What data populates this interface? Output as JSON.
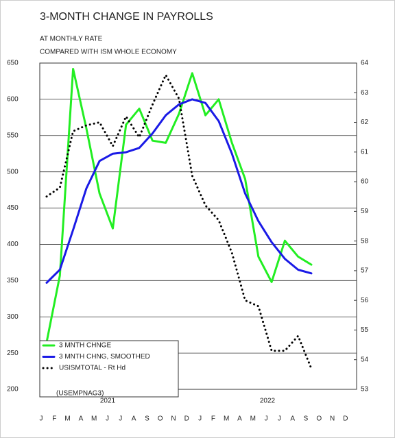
{
  "chart_data": {
    "type": "line",
    "title": "3-MONTH CHANGE IN PAYROLLS",
    "subtitle": [
      "AT MONTHLY RATE",
      "COMPARED WITH ISM WHOLE ECONOMY"
    ],
    "annotation": "(USEMPNAG3)",
    "years": [
      "2021",
      "2022"
    ],
    "categories": [
      "J",
      "F",
      "M",
      "A",
      "M",
      "J",
      "J",
      "A",
      "S",
      "O",
      "N",
      "D",
      "J",
      "F",
      "M",
      "A",
      "M",
      "J",
      "J",
      "A",
      "S",
      "O",
      "N",
      "D"
    ],
    "series": [
      {
        "name": "3 MNTH CHNGE",
        "color": "#22ee22",
        "style": "solid",
        "values": [
          265,
          357,
          642,
          560,
          470,
          422,
          565,
          587,
          543,
          540,
          580,
          636,
          578,
          600,
          540,
          490,
          383,
          348,
          405,
          383,
          372,
          null,
          null,
          null
        ]
      },
      {
        "name": "3 MNTH CHNG, SMOOTHED",
        "color": "#1a1ae6",
        "style": "solid",
        "values": [
          347,
          365,
          420,
          477,
          515,
          525,
          527,
          533,
          553,
          578,
          593,
          600,
          595,
          570,
          525,
          470,
          432,
          403,
          380,
          365,
          360,
          null,
          null,
          null
        ]
      },
      {
        "name": "USISMTOTAL - Rt Hd",
        "color": "#000000",
        "style": "dotted",
        "axis": "y2",
        "values": [
          59.5,
          59.8,
          61.7,
          61.9,
          62.0,
          61.2,
          62.2,
          61.5,
          62.6,
          63.6,
          62.8,
          60.2,
          59.2,
          58.7,
          57.6,
          56.0,
          55.8,
          54.3,
          54.3,
          54.8,
          53.7,
          null,
          null,
          null
        ]
      }
    ],
    "ylim": [
      200,
      650
    ],
    "yticks": [
      200,
      250,
      300,
      350,
      400,
      450,
      500,
      550,
      600,
      650
    ],
    "y2lim": [
      53,
      64
    ],
    "y2ticks": [
      53,
      54,
      55,
      56,
      57,
      58,
      59,
      60,
      61,
      62,
      63,
      64
    ],
    "grid": true,
    "legend": "lower left"
  }
}
